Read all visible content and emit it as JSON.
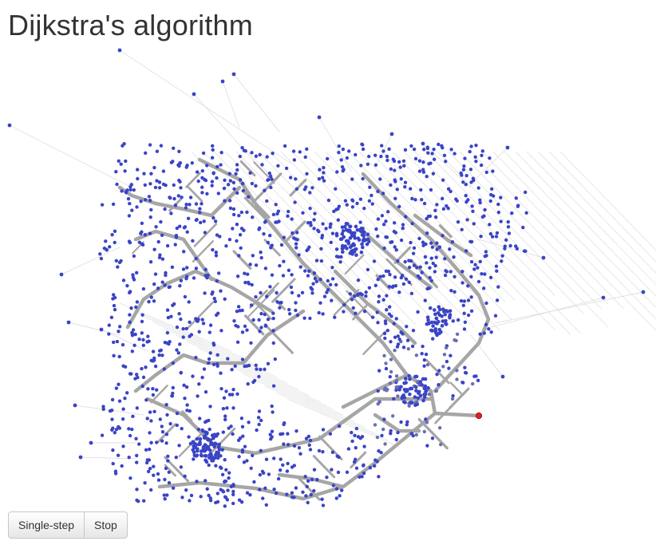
{
  "page": {
    "title": "Dijkstra's algorithm"
  },
  "controls": {
    "single_step_label": "Single-step",
    "stop_label": "Stop"
  },
  "graph": {
    "node_color": "#3a44c6",
    "visited_node_color": "#6a6fb2",
    "source_node_color": "#e02020",
    "tree_edge_color": "#a6a6a6",
    "faint_edge_color": "#d8d8d8"
  }
}
